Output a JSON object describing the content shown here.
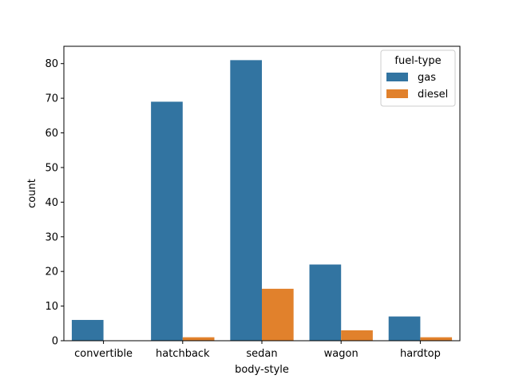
{
  "chart_data": {
    "type": "bar",
    "title": "",
    "xlabel": "body-style",
    "ylabel": "count",
    "categories": [
      "convertible",
      "hatchback",
      "sedan",
      "wagon",
      "hardtop"
    ],
    "series": [
      {
        "name": "gas",
        "color": "#3274a1",
        "values": [
          6,
          69,
          81,
          22,
          7
        ]
      },
      {
        "name": "diesel",
        "color": "#e1812c",
        "values": [
          0,
          1,
          15,
          3,
          1
        ]
      }
    ],
    "ylim": [
      0,
      85
    ],
    "yticks": [
      0,
      10,
      20,
      30,
      40,
      50,
      60,
      70,
      80
    ],
    "grid": false,
    "legend": {
      "title": "fuel-type",
      "position": "top-right"
    }
  }
}
